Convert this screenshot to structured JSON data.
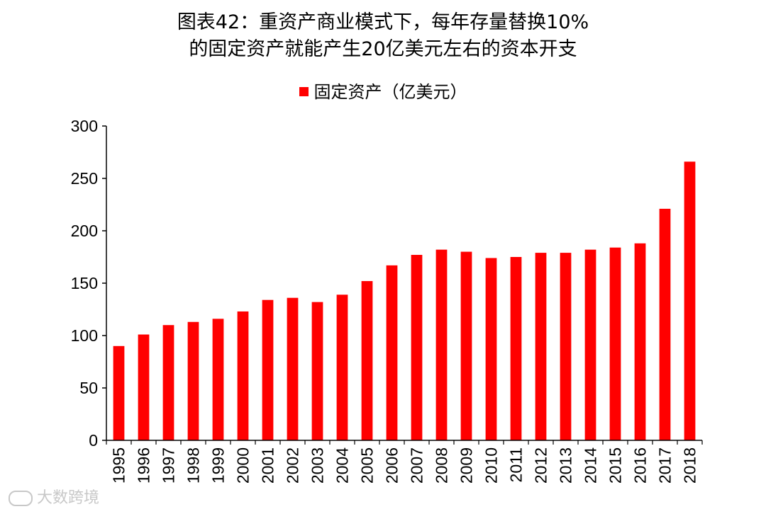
{
  "title_line1": "图表42：重资产商业模式下，每年存量替换10%",
  "title_line2": "的固定资产就能产生20亿美元左右的资本开支",
  "watermark": "大数跨境",
  "chart_data": {
    "type": "bar",
    "legend_position": "top-center",
    "grid": false,
    "ylim": [
      0,
      300
    ],
    "yticks": [
      0,
      50,
      100,
      150,
      200,
      250,
      300
    ],
    "bar_color": "#ff0000",
    "categories": [
      "1995",
      "1996",
      "1997",
      "1998",
      "1999",
      "2000",
      "2001",
      "2002",
      "2003",
      "2004",
      "2005",
      "2006",
      "2007",
      "2008",
      "2009",
      "2010",
      "2011",
      "2012",
      "2013",
      "2014",
      "2015",
      "2016",
      "2017",
      "2018"
    ],
    "series": [
      {
        "name": "固定资产（亿美元）",
        "values": [
          90,
          101,
          110,
          113,
          116,
          123,
          134,
          136,
          132,
          139,
          152,
          167,
          177,
          182,
          180,
          174,
          175,
          179,
          179,
          182,
          184,
          188,
          221,
          266
        ]
      }
    ]
  }
}
